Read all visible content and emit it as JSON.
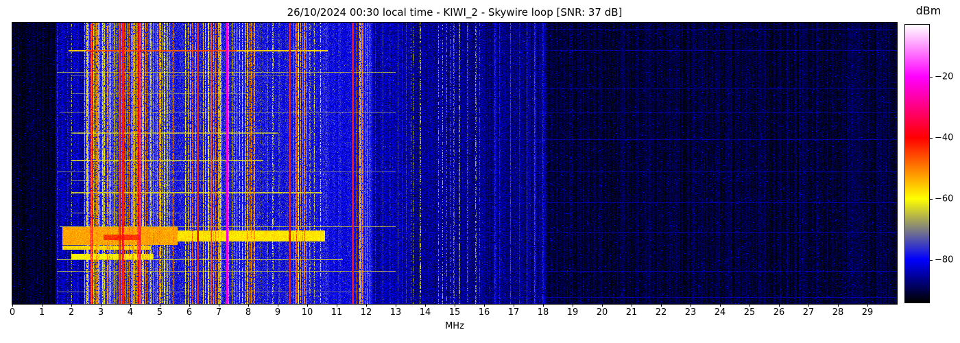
{
  "figure": {
    "title": "26/10/2024 00:30 local time - KIWI_2 - Skywire loop [SNR: 37 dB]",
    "background": "#ffffff"
  },
  "chart_data": {
    "type": "heatmap",
    "subtype": "radio-spectrogram-waterfall",
    "title": "26/10/2024 00:30 local time - KIWI_2 - Skywire loop [SNR: 37 dB]",
    "snr_db": 37,
    "xlabel": "MHz",
    "x_range": [
      0,
      30
    ],
    "x_ticks": [
      "0",
      "1",
      "2",
      "3",
      "4",
      "5",
      "6",
      "7",
      "8",
      "9",
      "10",
      "11",
      "12",
      "13",
      "14",
      "15",
      "16",
      "17",
      "18",
      "19",
      "20",
      "21",
      "22",
      "23",
      "24",
      "25",
      "26",
      "27",
      "28",
      "29"
    ],
    "y_axis": {
      "ticks": [],
      "description": "time rows (waterfall), no labels shown"
    },
    "grid": false,
    "colorbar": {
      "label": "dBm",
      "tick_labels": [
        "−20",
        "−40",
        "−60",
        "−80"
      ],
      "tick_values": [
        -20,
        -40,
        -60,
        -80
      ],
      "value_top": -3,
      "value_bottom": -94,
      "colormap_anchors": [
        [
          -3,
          "#ffffff"
        ],
        [
          -20,
          "#ff00ff"
        ],
        [
          -30,
          "#ff0080"
        ],
        [
          -40,
          "#ff0000"
        ],
        [
          -50,
          "#ff8000"
        ],
        [
          -60,
          "#ffff00"
        ],
        [
          -70,
          "#808080"
        ],
        [
          -80,
          "#0000ff"
        ],
        [
          -87,
          "#000080"
        ],
        [
          -94,
          "#000000"
        ]
      ]
    },
    "seed": 20241026,
    "noise_floor_segments": [
      [
        0.0,
        1.45,
        -92,
        2.5
      ],
      [
        1.45,
        2.42,
        -85,
        4
      ],
      [
        2.42,
        5.45,
        -77,
        5
      ],
      [
        5.45,
        8.3,
        -78,
        5
      ],
      [
        8.3,
        10.7,
        -79,
        5
      ],
      [
        10.7,
        12.2,
        -80,
        4.5
      ],
      [
        12.2,
        13.5,
        -85,
        4
      ],
      [
        13.5,
        15.1,
        -86,
        4
      ],
      [
        15.1,
        18.1,
        -87,
        3.5
      ],
      [
        18.1,
        30.0,
        -91,
        2.5
      ]
    ],
    "signal_bands": [
      [
        1.5,
        2.4,
        0.08,
        0.22,
        -82,
        -74,
        0.6
      ],
      [
        2.42,
        3.3,
        0.04,
        0.1,
        -64,
        -50,
        0.8
      ],
      [
        3.3,
        4.4,
        0.04,
        0.09,
        -62,
        -46,
        0.85
      ],
      [
        4.4,
        5.45,
        0.04,
        0.1,
        -64,
        -50,
        0.8
      ],
      [
        5.85,
        6.3,
        0.05,
        0.12,
        -62,
        -48,
        0.85
      ],
      [
        6.45,
        7.15,
        0.05,
        0.12,
        -60,
        -47,
        0.85
      ],
      [
        7.33,
        8.2,
        0.05,
        0.12,
        -66,
        -50,
        0.8
      ],
      [
        8.35,
        9.3,
        0.1,
        0.3,
        -72,
        -62,
        0.5
      ],
      [
        9.5,
        10.0,
        0.05,
        0.12,
        -60,
        -47,
        0.85
      ],
      [
        10.05,
        10.7,
        0.09,
        0.22,
        -68,
        -58,
        0.55
      ],
      [
        11.65,
        12.18,
        0.05,
        0.12,
        -60,
        -48,
        0.85
      ],
      [
        12.25,
        13.45,
        0.1,
        0.3,
        -80,
        -73,
        0.7
      ],
      [
        13.5,
        14.05,
        0.12,
        0.3,
        -70,
        -62,
        0.45
      ],
      [
        14.4,
        14.98,
        0.08,
        0.2,
        -72,
        -63,
        0.45
      ],
      [
        15.05,
        15.95,
        0.12,
        0.3,
        -77,
        -65,
        0.5
      ],
      [
        16.3,
        18.05,
        0.15,
        0.45,
        -80,
        -74,
        0.8
      ],
      [
        18.5,
        29.8,
        0.6,
        1.8,
        -88,
        -85,
        0.35
      ]
    ],
    "carriers": [
      [
        2.0,
        -66,
        1,
        0.4
      ],
      [
        2.68,
        -50,
        2,
        0.95
      ],
      [
        3.62,
        -45,
        2,
        1.0
      ],
      [
        3.74,
        -48,
        2,
        0.95
      ],
      [
        4.3,
        -46,
        2,
        1.0
      ],
      [
        6.27,
        -44,
        2,
        1.0
      ],
      [
        6.75,
        -46,
        1,
        1.0
      ],
      [
        7.28,
        -30,
        3,
        1.0
      ],
      [
        9.395,
        -43,
        2,
        1.0
      ],
      [
        9.62,
        -46,
        1,
        0.9
      ],
      [
        11.545,
        -40,
        2,
        1.0
      ],
      [
        13.57,
        -65,
        1,
        0.5
      ],
      [
        15.7,
        -67,
        1,
        0.5
      ],
      [
        26.7,
        -87,
        1,
        0.7
      ]
    ],
    "time_events": [
      [
        40,
        2,
        1.9,
        10.7,
        -56
      ],
      [
        40,
        2,
        2.5,
        7.6,
        -46
      ],
      [
        72,
        1,
        1.5,
        13.0,
        -68
      ],
      [
        77,
        1,
        2.0,
        9.5,
        -72
      ],
      [
        103,
        1,
        2.0,
        8.0,
        -71
      ],
      [
        130,
        1,
        1.6,
        13.0,
        -70
      ],
      [
        160,
        2,
        2.0,
        9.0,
        -67
      ],
      [
        200,
        2,
        2.0,
        8.5,
        -66
      ],
      [
        217,
        1,
        1.5,
        13.0,
        -71
      ],
      [
        230,
        1,
        2.0,
        7.0,
        -70
      ],
      [
        247,
        2,
        2.0,
        10.5,
        -65
      ],
      [
        277,
        1,
        2.0,
        6.0,
        -68
      ],
      [
        297,
        1,
        1.6,
        13.0,
        -66
      ],
      [
        298,
        26,
        1.7,
        5.6,
        -53
      ],
      [
        309,
        8,
        3.1,
        4.35,
        -44
      ],
      [
        303,
        16,
        5.6,
        10.6,
        -58
      ],
      [
        325,
        6,
        1.7,
        4.7,
        -57
      ],
      [
        337,
        8,
        2.0,
        4.8,
        -60
      ],
      [
        345,
        1,
        1.5,
        11.2,
        -66
      ],
      [
        362,
        1,
        1.5,
        13.0,
        -67
      ],
      [
        392,
        1,
        1.5,
        12.0,
        -71
      ],
      [
        10,
        1,
        1.5,
        30.0,
        -85
      ],
      [
        40,
        1,
        1.5,
        30.0,
        -85
      ],
      [
        95,
        1,
        1.5,
        30.0,
        -85
      ],
      [
        130,
        1,
        1.5,
        30.0,
        -85
      ],
      [
        170,
        1,
        1.5,
        30.0,
        -85
      ],
      [
        217,
        1,
        1.5,
        30.0,
        -85
      ],
      [
        262,
        1,
        1.5,
        30.0,
        -85
      ],
      [
        305,
        1,
        1.5,
        30.0,
        -85
      ],
      [
        362,
        1,
        1.5,
        30.0,
        -85
      ],
      [
        400,
        1,
        1.5,
        30.0,
        -85
      ]
    ]
  }
}
